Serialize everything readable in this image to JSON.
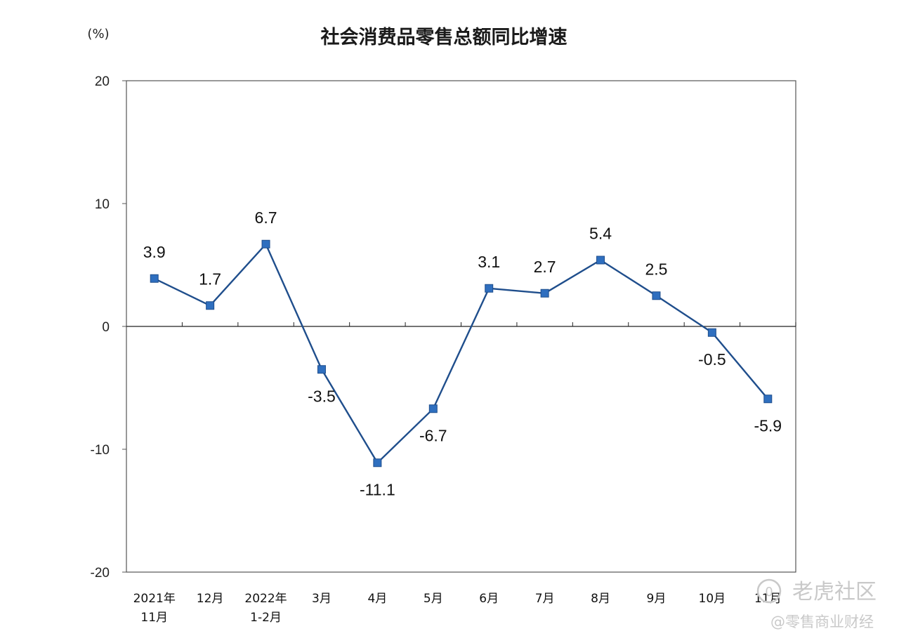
{
  "chart_data": {
    "type": "line",
    "title": "社会消费品零售总额同比增速",
    "unit_label": "(%)",
    "categories": [
      [
        "2021年",
        "11月"
      ],
      [
        "12月"
      ],
      [
        "2022年",
        "1-2月"
      ],
      [
        "3月"
      ],
      [
        "4月"
      ],
      [
        "5月"
      ],
      [
        "6月"
      ],
      [
        "7月"
      ],
      [
        "8月"
      ],
      [
        "9月"
      ],
      [
        "10月"
      ],
      [
        "11月"
      ]
    ],
    "values": [
      3.9,
      1.7,
      6.7,
      -3.5,
      -11.1,
      -6.7,
      3.1,
      2.7,
      5.4,
      2.5,
      -0.5,
      -5.9
    ],
    "value_labels": [
      "3.9",
      "1.7",
      "6.7",
      "-3.5",
      "-11.1",
      "-6.7",
      "3.1",
      "2.7",
      "5.4",
      "2.5",
      "-0.5",
      "-5.9"
    ],
    "ylim": [
      -20,
      20
    ],
    "yticks": [
      20,
      10,
      0,
      -10,
      -20
    ],
    "ytick_labels": [
      "20",
      "10",
      "0",
      "-10",
      "-20"
    ],
    "grid": false,
    "legend": "none",
    "line_color": "#1f4e8c",
    "marker_color": "#2f6fbf"
  },
  "watermark": {
    "icon": "tiger-logo-icon",
    "brand": "老虎社区",
    "source": "@零售商业财经"
  }
}
